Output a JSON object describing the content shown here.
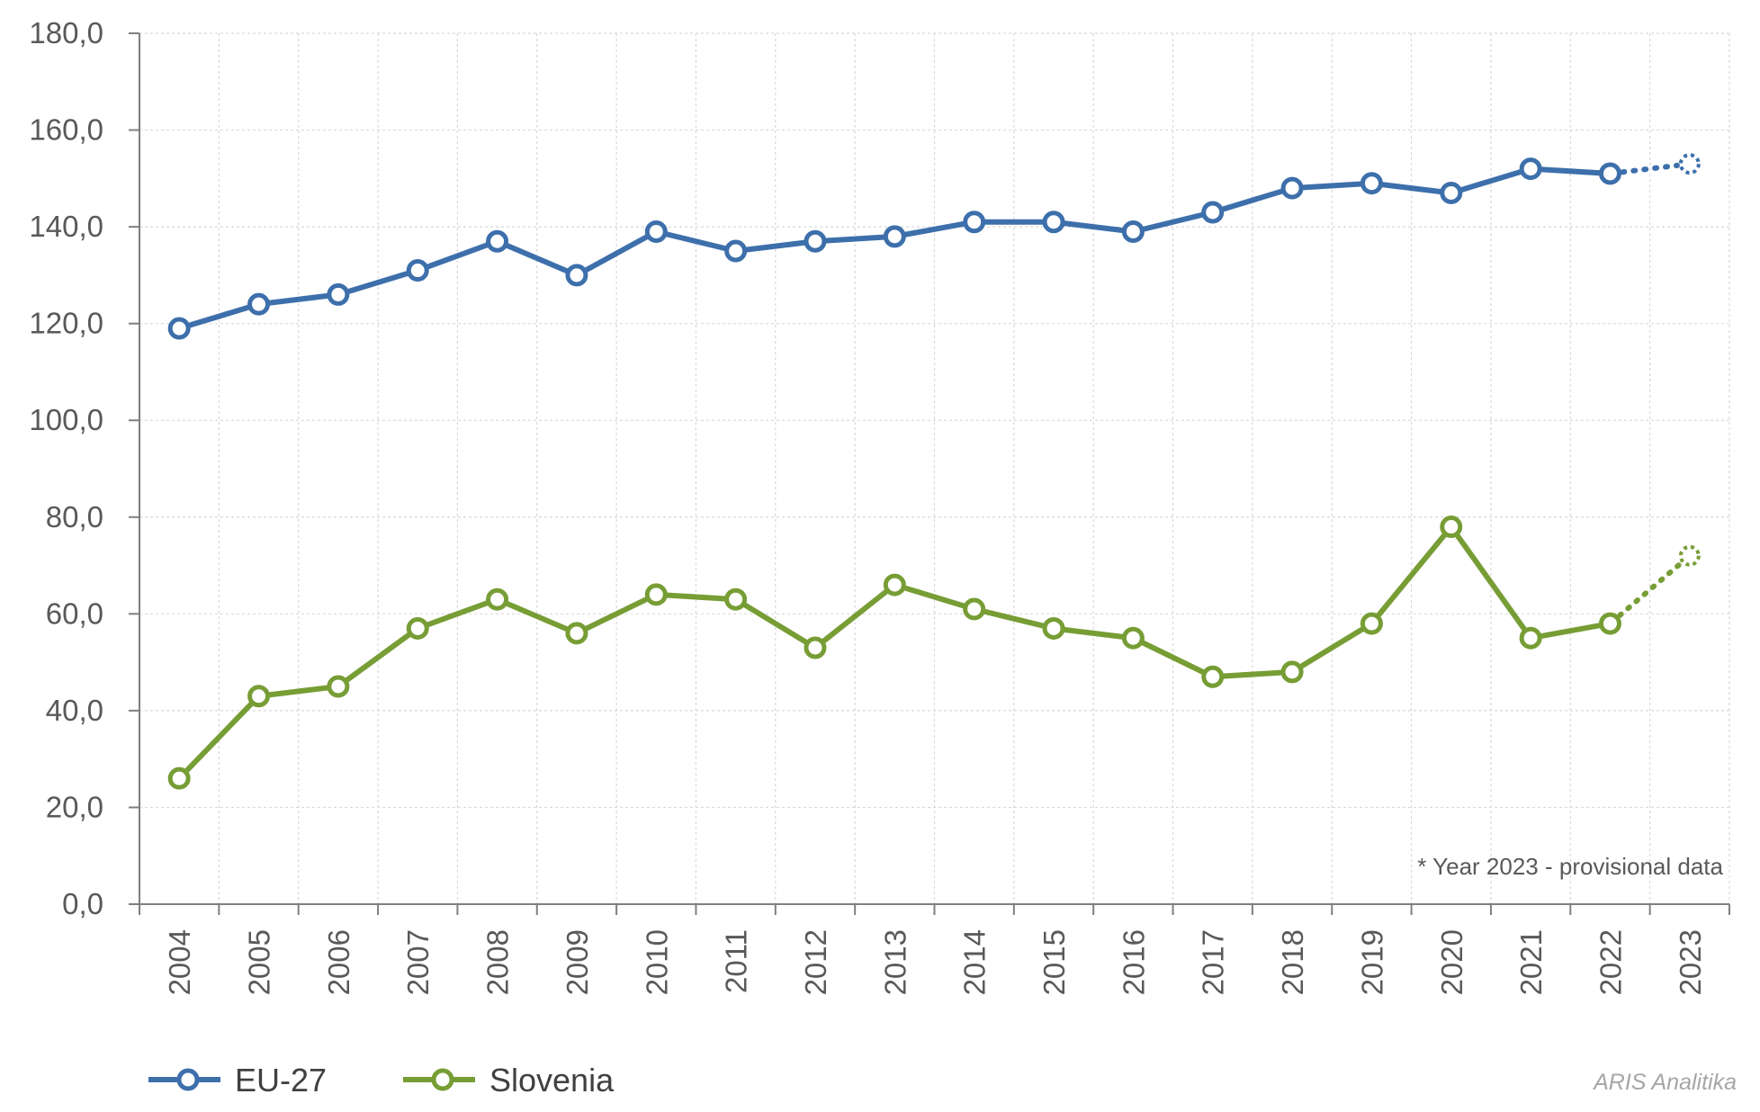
{
  "chart_data": {
    "type": "line",
    "categories": [
      "2004",
      "2005",
      "2006",
      "2007",
      "2008",
      "2009",
      "2010",
      "2011",
      "2012",
      "2013",
      "2014",
      "2015",
      "2016",
      "2017",
      "2018",
      "2019",
      "2020",
      "2021",
      "2022",
      "2023"
    ],
    "ylim": [
      0,
      180
    ],
    "yticks": [
      "0,0",
      "20,0",
      "40,0",
      "60,0",
      "80,0",
      "100,0",
      "120,0",
      "140,0",
      "160,0",
      "180,0"
    ],
    "grid": true,
    "legend_position": "bottom-left",
    "provisional_from": "2023",
    "series": [
      {
        "name": "EU-27",
        "color": "#3d6fab",
        "values": [
          119,
          124,
          126,
          131,
          137,
          130,
          139,
          135,
          137,
          138,
          141,
          141,
          139,
          143,
          148,
          149,
          147,
          152,
          151,
          153
        ]
      },
      {
        "name": "Slovenia",
        "color": "#779d35",
        "values": [
          26,
          43,
          45,
          57,
          63,
          56,
          64,
          63,
          53,
          66,
          61,
          57,
          55,
          47,
          48,
          58,
          78,
          55,
          58,
          72
        ]
      }
    ],
    "annotation": "* Year 2023 - provisional data",
    "credit": "ARIS Analitika"
  }
}
